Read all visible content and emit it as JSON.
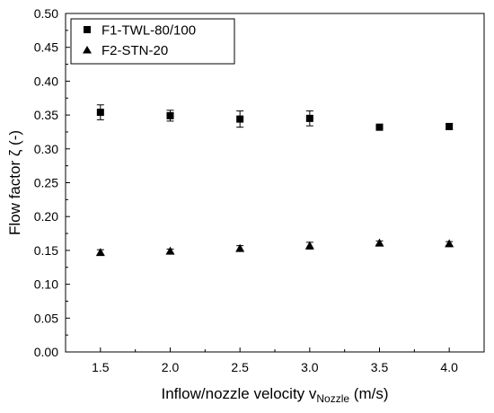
{
  "chart_data": {
    "type": "scatter",
    "xlabel_main": "Inflow/nozzle velocity v",
    "xlabel_sub": "Nozzle",
    "xlabel_unit": " (m/s)",
    "ylabel": "Flow factor ζ (-)",
    "xlim": [
      1.25,
      4.25
    ],
    "ylim": [
      0.0,
      0.5
    ],
    "x_ticks": [
      "1.5",
      "2.0",
      "2.5",
      "3.0",
      "3.5",
      "4.0"
    ],
    "y_ticks": [
      "0.00",
      "0.05",
      "0.10",
      "0.15",
      "0.20",
      "0.25",
      "0.30",
      "0.35",
      "0.40",
      "0.45",
      "0.50"
    ],
    "grid": false,
    "legend_position": "top-left",
    "series": [
      {
        "name": "F1-TWL-80/100",
        "marker": "square",
        "x": [
          1.5,
          2.0,
          2.5,
          3.0,
          3.5,
          4.0
        ],
        "y": [
          0.354,
          0.349,
          0.344,
          0.345,
          0.332,
          0.333
        ],
        "error": [
          0.011,
          0.008,
          0.012,
          0.011,
          0.003,
          0.004
        ]
      },
      {
        "name": "F2-STN-20",
        "marker": "triangle",
        "x": [
          1.5,
          2.0,
          2.5,
          3.0,
          3.5,
          4.0
        ],
        "y": [
          0.147,
          0.149,
          0.153,
          0.157,
          0.161,
          0.16
        ],
        "error": [
          0.004,
          0.003,
          0.004,
          0.005,
          0.003,
          0.003
        ]
      }
    ]
  }
}
